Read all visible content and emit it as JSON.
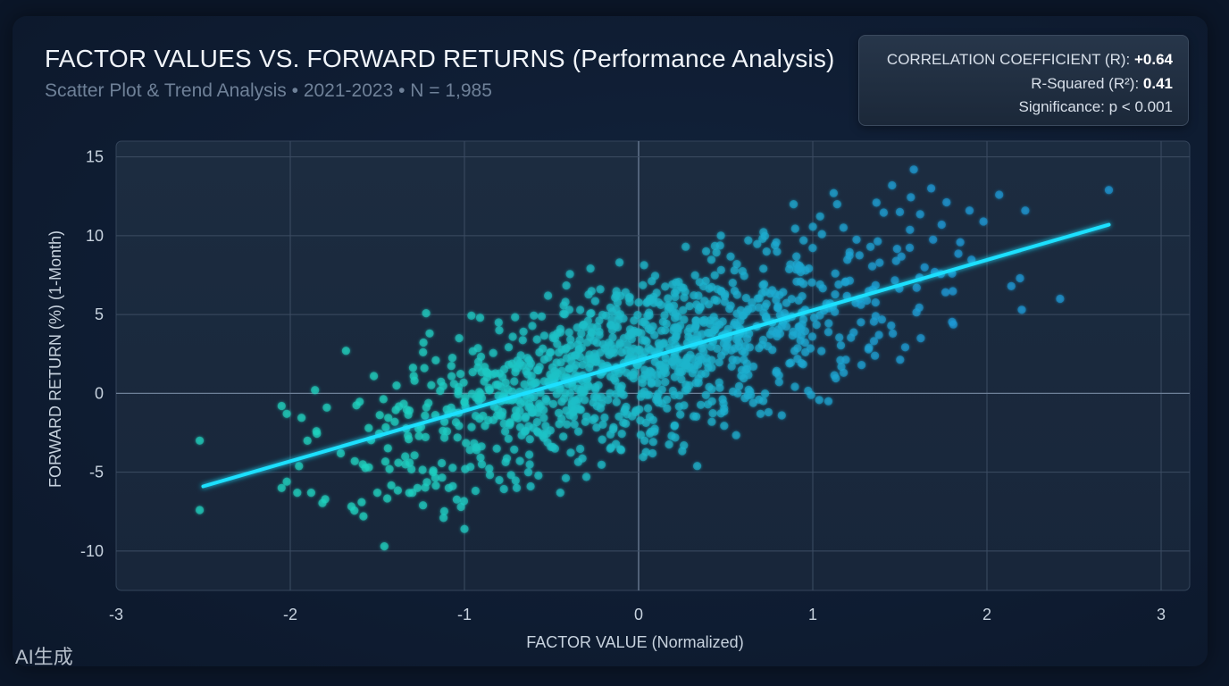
{
  "title": "FACTOR VALUES VS. FORWARD RETURNS (Performance Analysis)",
  "subtitle": "Scatter Plot & Trend Analysis • 2021-2023 • N = 1,985",
  "stats": {
    "r_label": "CORRELATION COEFFICIENT (R):",
    "r_value": "+0.64",
    "r2_label": "R-Squared (R²):",
    "r2_value": "0.41",
    "significance": "Significance: p < 0.001"
  },
  "watermark": "AI生成",
  "colors": {
    "background": "#0f1d33",
    "plot_area": "#1a2a3e",
    "trend_line": "#1ee0ff",
    "point_low": "#1ed4c0",
    "point_high": "#1b9ad6",
    "axis_text": "#c7d2de"
  },
  "chart_data": {
    "type": "scatter",
    "title": "FACTOR VALUES VS. FORWARD RETURNS (Performance Analysis)",
    "subtitle": "Scatter Plot & Trend Analysis • 2021-2023 • N = 1,985",
    "xlabel": "FACTOR VALUE (Normalized)",
    "ylabel": "FORWARD RETURN (%) (1-Month)",
    "xlim": [
      -3,
      3
    ],
    "ylim": [
      -12.5,
      16
    ],
    "xticks": [
      "-3",
      "-2",
      "-1",
      "0",
      "1",
      "2",
      "3"
    ],
    "yticks": [
      "-10",
      "-5",
      "0",
      "5",
      "10",
      "15"
    ],
    "xtick_values": [
      -3,
      -2,
      -1,
      0,
      1,
      2,
      3
    ],
    "ytick_values": [
      -10,
      -5,
      0,
      5,
      10,
      15
    ],
    "grid": true,
    "n": 1985,
    "trend_line": {
      "x": [
        -2.5,
        2.7
      ],
      "y": [
        -5.9,
        10.7
      ]
    },
    "points": [
      {
        "x": -2.52,
        "y": -3.0
      },
      {
        "x": -2.52,
        "y": -7.4
      },
      {
        "x": -2.05,
        "y": -0.8
      },
      {
        "x": -2.02,
        "y": -1.3
      },
      {
        "x": -2.05,
        "y": -6.0
      },
      {
        "x": -2.02,
        "y": -5.6
      },
      {
        "x": -1.96,
        "y": -6.3
      },
      {
        "x": -1.88,
        "y": -6.3
      },
      {
        "x": -1.85,
        "y": -2.4
      },
      {
        "x": -1.79,
        "y": -0.9
      },
      {
        "x": -1.71,
        "y": -3.8
      },
      {
        "x": -1.68,
        "y": 2.7
      },
      {
        "x": -1.63,
        "y": -4.3
      },
      {
        "x": -1.59,
        "y": -6.9
      },
      {
        "x": -1.58,
        "y": -7.8
      },
      {
        "x": -1.55,
        "y": -2.2
      },
      {
        "x": -1.52,
        "y": 1.1
      },
      {
        "x": -1.5,
        "y": -6.3
      },
      {
        "x": -1.46,
        "y": -9.7
      },
      {
        "x": -1.43,
        "y": -4.8
      },
      {
        "x": -1.4,
        "y": -1.8
      },
      {
        "x": -1.39,
        "y": 0.5
      },
      {
        "x": -1.34,
        "y": -4.0
      },
      {
        "x": -1.32,
        "y": -2.9
      },
      {
        "x": -1.27,
        "y": -6.0
      },
      {
        "x": -1.23,
        "y": 1.6
      },
      {
        "x": -1.2,
        "y": 3.8
      },
      {
        "x": -1.18,
        "y": -5.0
      },
      {
        "x": -1.12,
        "y": -7.9
      },
      {
        "x": -1.09,
        "y": -6.0
      },
      {
        "x": -1.06,
        "y": 0.6
      },
      {
        "x": -1.04,
        "y": -2.8
      },
      {
        "x": -1.0,
        "y": -8.6
      },
      {
        "x": -1.02,
        "y": -7.2
      },
      {
        "x": -1.03,
        "y": 3.5
      },
      {
        "x": -0.93,
        "y": -3.6
      },
      {
        "x": -0.92,
        "y": 2.0
      },
      {
        "x": -0.9,
        "y": -4.5
      },
      {
        "x": -0.91,
        "y": 4.8
      },
      {
        "x": -0.84,
        "y": 1.2
      },
      {
        "x": -0.8,
        "y": -5.5
      },
      {
        "x": -0.8,
        "y": 4.0
      },
      {
        "x": -0.74,
        "y": -2.0
      },
      {
        "x": -0.7,
        "y": -6.0
      },
      {
        "x": -0.62,
        "y": -5.9
      },
      {
        "x": -0.57,
        "y": 2.6
      },
      {
        "x": -0.52,
        "y": 6.2
      },
      {
        "x": -0.48,
        "y": -3.5
      },
      {
        "x": -0.45,
        "y": -6.3
      },
      {
        "x": -0.42,
        "y": 5.8
      },
      {
        "x": -0.3,
        "y": -5.3
      },
      {
        "x": -0.22,
        "y": 6.6
      },
      {
        "x": -0.11,
        "y": 8.3
      },
      {
        "x": -0.1,
        "y": -3.6
      },
      {
        "x": 0.02,
        "y": 0.9
      },
      {
        "x": 0.08,
        "y": -3.8
      },
      {
        "x": 0.19,
        "y": -2.7
      },
      {
        "x": 0.27,
        "y": 9.3
      },
      {
        "x": 0.42,
        "y": -1.8
      },
      {
        "x": 0.55,
        "y": 7.8
      },
      {
        "x": 0.61,
        "y": -0.3
      },
      {
        "x": 0.7,
        "y": -1.3
      },
      {
        "x": 0.89,
        "y": 12.0
      },
      {
        "x": 0.93,
        "y": 7.7
      },
      {
        "x": 0.99,
        "y": -0.1
      },
      {
        "x": 1.09,
        "y": -0.5
      },
      {
        "x": 1.12,
        "y": 12.7
      },
      {
        "x": 1.14,
        "y": 12.0
      },
      {
        "x": 1.28,
        "y": 1.8
      },
      {
        "x": 1.32,
        "y": 2.8
      },
      {
        "x": 1.45,
        "y": 4.3
      },
      {
        "x": 1.5,
        "y": 11.5
      },
      {
        "x": 1.58,
        "y": 14.2
      },
      {
        "x": 1.62,
        "y": 3.5
      },
      {
        "x": 1.68,
        "y": 13.0
      },
      {
        "x": 1.7,
        "y": 7.7
      },
      {
        "x": 1.74,
        "y": 10.7
      },
      {
        "x": 1.8,
        "y": 7.6
      },
      {
        "x": 1.9,
        "y": 11.6
      },
      {
        "x": 1.98,
        "y": 10.9
      },
      {
        "x": 2.07,
        "y": 12.6
      },
      {
        "x": 2.14,
        "y": 6.8
      },
      {
        "x": 2.19,
        "y": 7.3
      },
      {
        "x": 2.2,
        "y": 5.3
      },
      {
        "x": 2.22,
        "y": 11.6
      },
      {
        "x": 2.42,
        "y": 6.0
      },
      {
        "x": 2.7,
        "y": 12.9
      }
    ]
  }
}
